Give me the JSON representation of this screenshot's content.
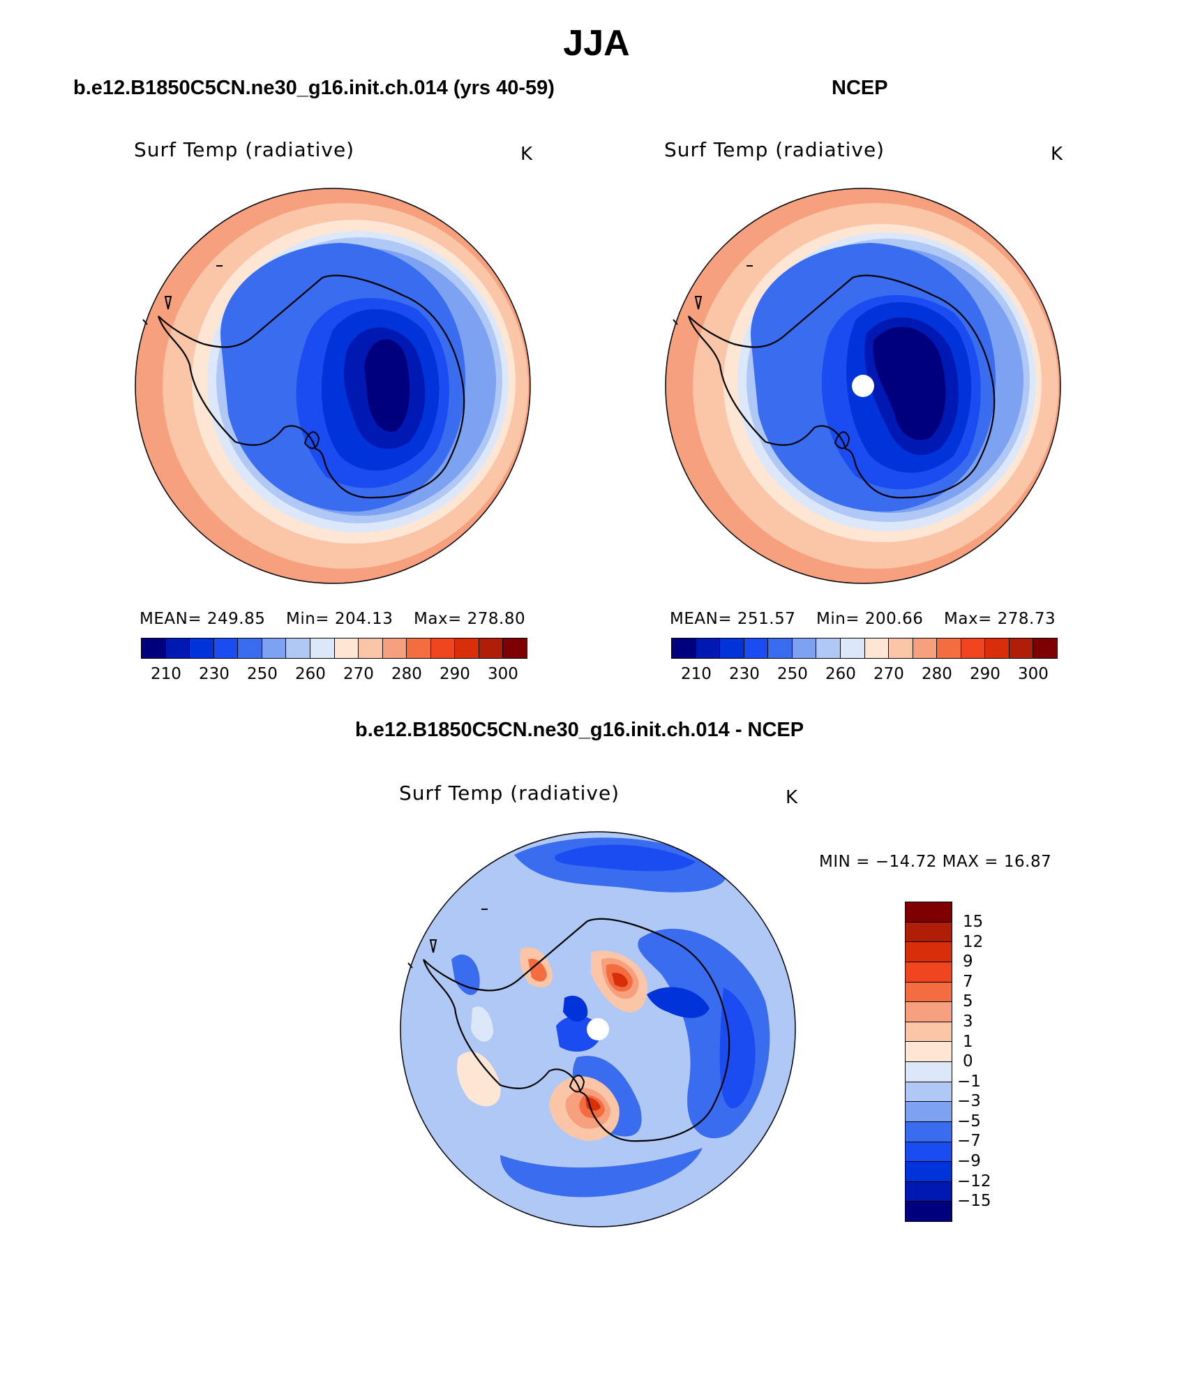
{
  "page": {
    "title": "JJA"
  },
  "panels": [
    {
      "case": "b.e12.B1850C5CN.ne30_g16.init.ch.014 (yrs 40-59)",
      "variable": "Surf Temp (radiative)",
      "units": "K",
      "stats": {
        "mean": "MEAN= 249.85",
        "min": "Min= 204.13",
        "max": "Max= 278.80"
      },
      "colorbar_labels": [
        "210",
        "230",
        "250",
        "260",
        "270",
        "280",
        "290",
        "300"
      ],
      "pole_hole": false
    },
    {
      "case": "NCEP",
      "variable": "Surf Temp (radiative)",
      "units": "K",
      "stats": {
        "mean": "MEAN= 251.57",
        "min": "Min= 200.66",
        "max": "Max= 278.73"
      },
      "colorbar_labels": [
        "210",
        "230",
        "250",
        "260",
        "270",
        "280",
        "290",
        "300"
      ],
      "pole_hole": true
    }
  ],
  "difference": {
    "title": "b.e12.B1850C5CN.ne30_g16.init.ch.014 - NCEP",
    "variable": "Surf Temp (radiative)",
    "units": "K",
    "minmax": "MIN = −14.72 MAX =  16.87",
    "colorbar_labels": [
      "15",
      "12",
      "9",
      "7",
      "5",
      "3",
      "1",
      "0",
      "−1",
      "−3",
      "−5",
      "−7",
      "−9",
      "−12",
      "−15"
    ]
  },
  "colors": {
    "abs_scale": [
      "#00007f",
      "#0019b2",
      "#0033d9",
      "#1a4cf2",
      "#3a6cf0",
      "#7da2f2",
      "#b0c8f5",
      "#dce8fa",
      "#fde6d4",
      "#fbc5a8",
      "#f6a07d",
      "#f46d40",
      "#f0451e",
      "#d92e0a",
      "#b01e08",
      "#7f0000"
    ],
    "diff_scale": [
      "#7f0000",
      "#b01e08",
      "#d92e0a",
      "#f0451e",
      "#f46d40",
      "#f6a07d",
      "#fbc5a8",
      "#fde6d4",
      "#dce8fa",
      "#b0c8f5",
      "#7da2f2",
      "#3a6cf0",
      "#1a4cf2",
      "#0033d9",
      "#0019b2",
      "#00007f"
    ]
  }
}
